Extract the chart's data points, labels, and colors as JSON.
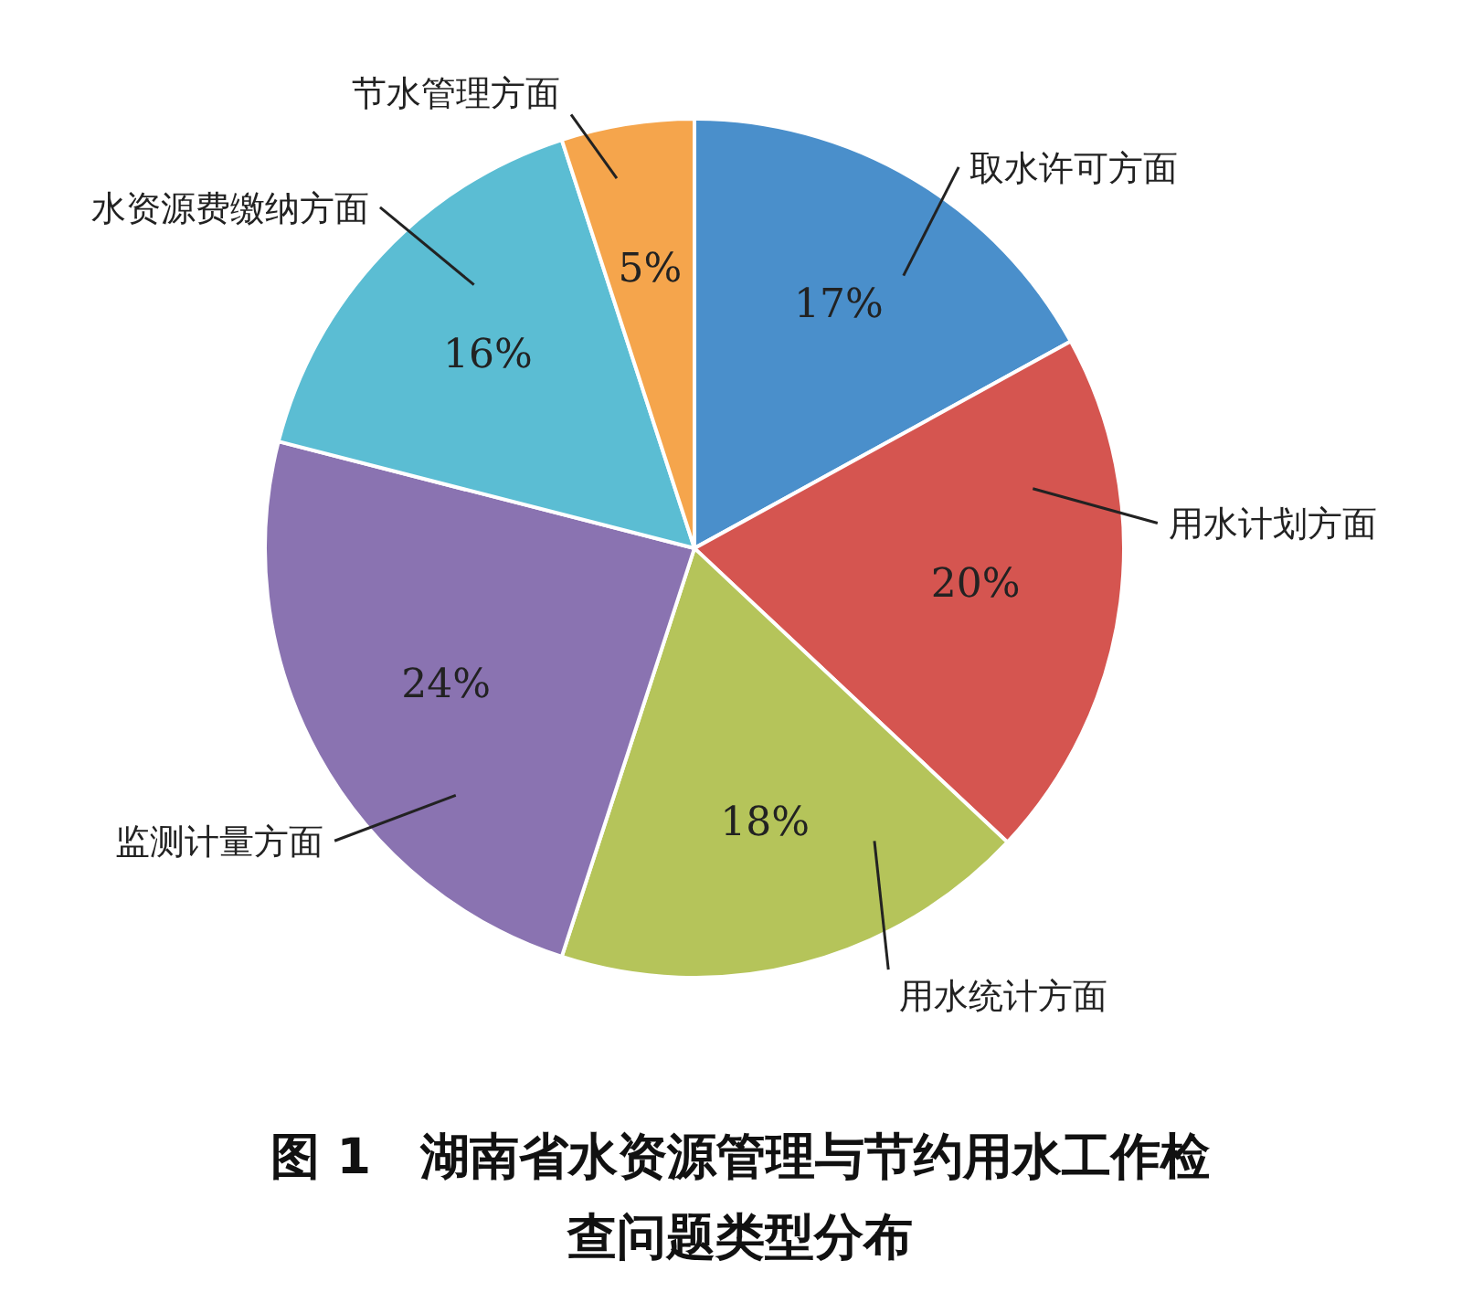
{
  "chart_data": {
    "type": "pie",
    "title": "图 1　湖南省水资源管理与节约用水工作检查问题类型分布",
    "categories": [
      "取水许可方面",
      "用水计划方面",
      "用水统计方面",
      "监测计量方面",
      "水资源费缴纳方面",
      "节水管理方面"
    ],
    "values": [
      17,
      20,
      18,
      24,
      16,
      5
    ],
    "colors": [
      "#4a8fcb",
      "#d55550",
      "#b5c45a",
      "#8a73b1",
      "#5bbdd3",
      "#f5a54c"
    ],
    "value_labels": [
      "17%",
      "20%",
      "18%",
      "24%",
      "16%",
      "5%"
    ]
  }
}
